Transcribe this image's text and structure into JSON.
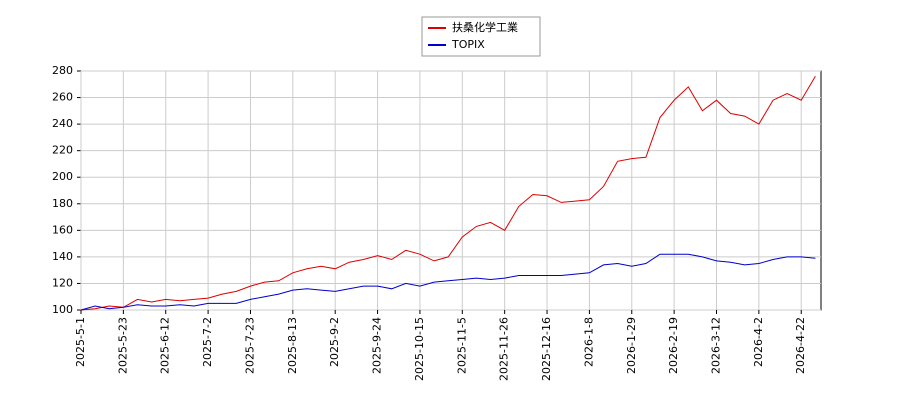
{
  "chart_data": {
    "type": "line",
    "categories": [
      "2025-5-1",
      null,
      null,
      "2025-5-23",
      null,
      null,
      "2025-6-12",
      null,
      null,
      "2025-7-2",
      null,
      null,
      "2025-7-23",
      null,
      null,
      "2025-8-13",
      null,
      null,
      "2025-9-2",
      null,
      null,
      "2025-9-24",
      null,
      null,
      "2025-10-15",
      null,
      null,
      "2025-11-5",
      null,
      null,
      "2025-11-26",
      null,
      null,
      "2025-12-16",
      null,
      null,
      "2026-1-8",
      null,
      null,
      "2026-1-29",
      null,
      null,
      "2026-2-19",
      null,
      null,
      "2026-3-12",
      null,
      null,
      "2026-4-2",
      null,
      null,
      "2026-4-22",
      null
    ],
    "series": [
      {
        "name": "扶桑化学工業",
        "color": "#dd0000",
        "values": [
          100,
          101,
          103,
          102,
          108,
          106,
          108,
          107,
          108,
          109,
          112,
          114,
          118,
          121,
          122,
          128,
          131,
          133,
          131,
          136,
          138,
          141,
          138,
          145,
          142,
          137,
          140,
          155,
          163,
          166,
          160,
          178,
          187,
          186,
          181,
          182,
          183,
          193,
          212,
          214,
          215,
          245,
          258,
          268,
          250,
          258,
          248,
          246,
          240,
          258,
          263,
          258,
          276
        ]
      },
      {
        "name": "TOPIX",
        "color": "#0000cc",
        "values": [
          100,
          103,
          101,
          102,
          104,
          103,
          103,
          104,
          103,
          105,
          105,
          105,
          108,
          110,
          112,
          115,
          116,
          115,
          114,
          116,
          118,
          118,
          116,
          120,
          118,
          121,
          122,
          123,
          124,
          123,
          124,
          126,
          126,
          126,
          126,
          127,
          128,
          134,
          135,
          133,
          135,
          142,
          142,
          142,
          140,
          137,
          136,
          134,
          135,
          138,
          140,
          140,
          139
        ]
      }
    ],
    "ylim": [
      100,
      280
    ],
    "yticks": [
      100,
      120,
      140,
      160,
      180,
      200,
      220,
      240,
      260,
      280
    ],
    "grid": true,
    "legend": "top"
  }
}
